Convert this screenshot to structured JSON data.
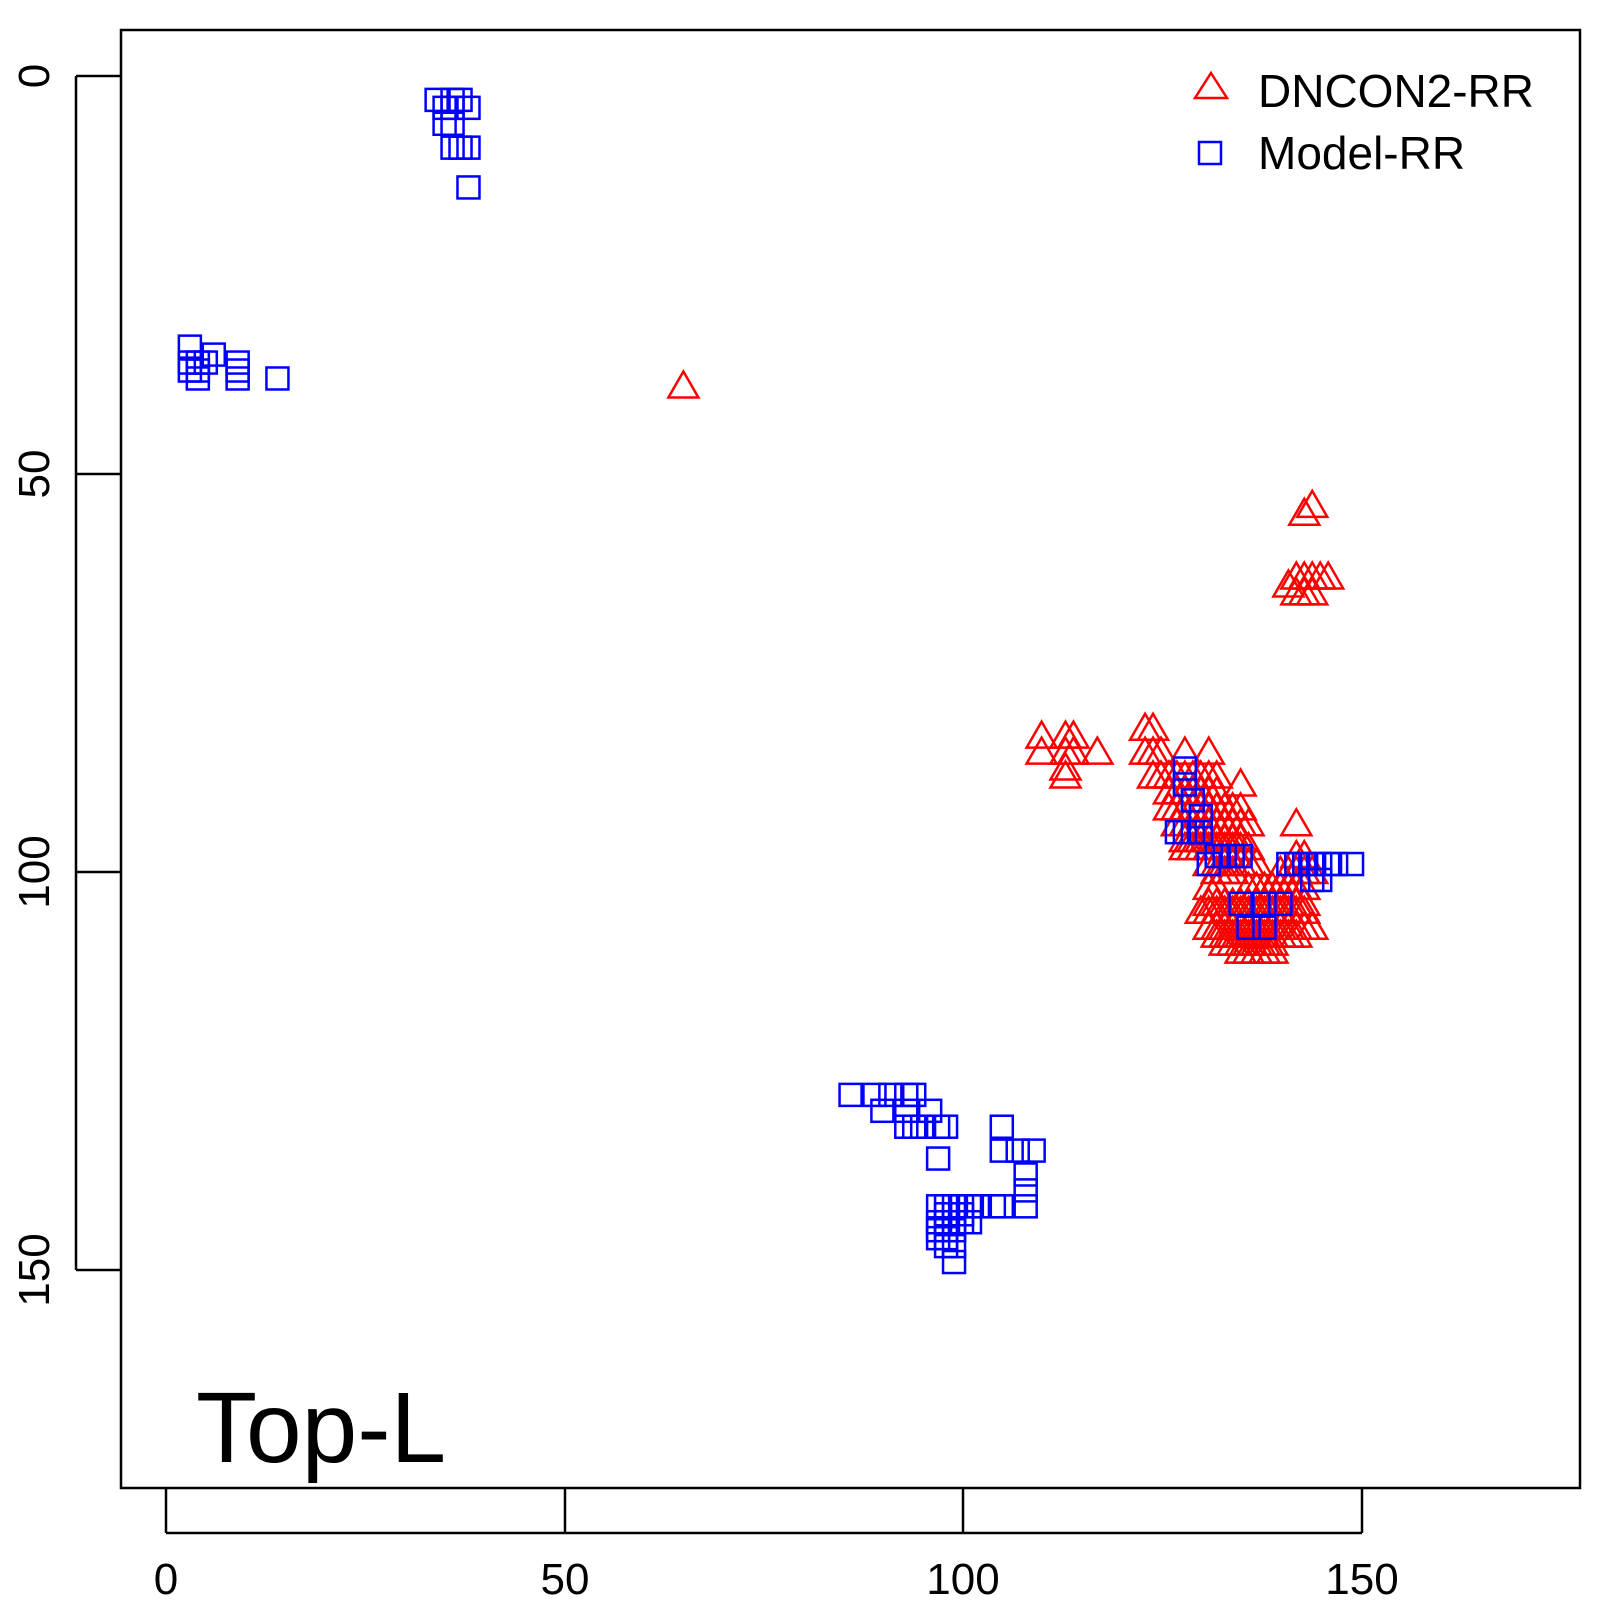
{
  "chart_data": {
    "type": "scatter",
    "title": "",
    "xlabel": "",
    "ylabel": "",
    "panel_label": "Top-L",
    "xlim": [
      -11.5,
      172
    ],
    "ylim": [
      -6,
      177
    ],
    "y_axis_inverted": true,
    "x_ticks": [
      "0",
      "50",
      "100",
      "150"
    ],
    "y_ticks": [
      "0",
      "50",
      "100",
      "150"
    ],
    "grid": false,
    "legend_position": "top-right",
    "colors": {
      "dncon2": "#ff0000",
      "model": "#0000ff",
      "axis": "#000000"
    },
    "series": [
      {
        "name": "DNCON2-RR",
        "marker": "triangle-open",
        "color": "#ff0000",
        "points": [
          [
            65,
            39
          ],
          [
            144,
            54
          ],
          [
            143,
            55
          ],
          [
            141,
            64
          ],
          [
            142,
            63
          ],
          [
            143,
            63
          ],
          [
            144,
            63
          ],
          [
            145,
            63
          ],
          [
            146,
            63
          ],
          [
            142,
            65
          ],
          [
            143,
            65
          ],
          [
            144,
            65
          ],
          [
            110,
            83
          ],
          [
            113,
            83
          ],
          [
            114,
            83
          ],
          [
            110,
            85
          ],
          [
            113,
            85
          ],
          [
            114,
            85
          ],
          [
            117,
            85
          ],
          [
            113,
            87
          ],
          [
            113,
            88
          ],
          [
            123,
            82
          ],
          [
            124,
            82
          ],
          [
            123,
            85
          ],
          [
            124,
            85
          ],
          [
            125,
            85
          ],
          [
            128,
            85
          ],
          [
            131,
            85
          ],
          [
            124,
            88
          ],
          [
            125,
            88
          ],
          [
            126,
            88
          ],
          [
            127,
            88
          ],
          [
            128,
            88
          ],
          [
            129,
            88
          ],
          [
            130,
            88
          ],
          [
            131,
            88
          ],
          [
            132,
            88
          ],
          [
            126,
            90
          ],
          [
            127,
            90
          ],
          [
            128,
            90
          ],
          [
            129,
            90
          ],
          [
            130,
            90
          ],
          [
            131,
            90
          ],
          [
            132,
            90
          ],
          [
            135,
            89
          ],
          [
            126,
            92
          ],
          [
            127,
            92
          ],
          [
            128,
            92
          ],
          [
            129,
            92
          ],
          [
            130,
            92
          ],
          [
            131,
            92
          ],
          [
            132,
            92
          ],
          [
            133,
            92
          ],
          [
            134,
            92
          ],
          [
            135,
            92
          ],
          [
            127,
            94
          ],
          [
            128,
            94
          ],
          [
            129,
            94
          ],
          [
            130,
            94
          ],
          [
            131,
            94
          ],
          [
            132,
            94
          ],
          [
            133,
            94
          ],
          [
            134,
            94
          ],
          [
            135,
            94
          ],
          [
            136,
            94
          ],
          [
            142,
            94
          ],
          [
            128,
            96
          ],
          [
            129,
            96
          ],
          [
            130,
            96
          ],
          [
            131,
            96
          ],
          [
            132,
            96
          ],
          [
            133,
            96
          ],
          [
            134,
            96
          ],
          [
            135,
            96
          ],
          [
            128,
            97
          ],
          [
            129,
            97
          ],
          [
            130,
            97
          ],
          [
            131,
            97
          ],
          [
            132,
            97
          ],
          [
            133,
            97
          ],
          [
            134,
            97
          ],
          [
            135,
            97
          ],
          [
            136,
            97
          ],
          [
            131,
            99
          ],
          [
            132,
            99
          ],
          [
            133,
            99
          ],
          [
            134,
            99
          ],
          [
            135,
            99
          ],
          [
            136,
            99
          ],
          [
            137,
            99
          ],
          [
            142,
            98
          ],
          [
            143,
            98
          ],
          [
            132,
            100
          ],
          [
            133,
            100
          ],
          [
            134,
            100
          ],
          [
            140,
            100
          ],
          [
            141,
            100
          ],
          [
            142,
            100
          ],
          [
            143,
            100
          ],
          [
            144,
            100
          ],
          [
            131,
            102
          ],
          [
            132,
            102
          ],
          [
            136,
            102
          ],
          [
            137,
            102
          ],
          [
            138,
            102
          ],
          [
            139,
            102
          ],
          [
            140,
            102
          ],
          [
            141,
            102
          ],
          [
            142,
            102
          ],
          [
            143,
            102
          ],
          [
            131,
            104
          ],
          [
            132,
            104
          ],
          [
            133,
            104
          ],
          [
            134,
            104
          ],
          [
            135,
            104
          ],
          [
            136,
            104
          ],
          [
            137,
            104
          ],
          [
            138,
            104
          ],
          [
            139,
            104
          ],
          [
            140,
            104
          ],
          [
            141,
            104
          ],
          [
            142,
            104
          ],
          [
            143,
            104
          ],
          [
            130,
            105
          ],
          [
            131,
            105
          ],
          [
            132,
            105
          ],
          [
            133,
            105
          ],
          [
            134,
            105
          ],
          [
            135,
            105
          ],
          [
            136,
            105
          ],
          [
            137,
            105
          ],
          [
            138,
            105
          ],
          [
            139,
            105
          ],
          [
            140,
            105
          ],
          [
            141,
            105
          ],
          [
            142,
            105
          ],
          [
            143,
            105
          ],
          [
            131,
            107
          ],
          [
            132,
            107
          ],
          [
            133,
            107
          ],
          [
            134,
            107
          ],
          [
            135,
            107
          ],
          [
            136,
            107
          ],
          [
            137,
            107
          ],
          [
            138,
            107
          ],
          [
            139,
            107
          ],
          [
            140,
            107
          ],
          [
            141,
            107
          ],
          [
            142,
            107
          ],
          [
            143,
            107
          ],
          [
            144,
            107
          ],
          [
            132,
            108
          ],
          [
            133,
            108
          ],
          [
            134,
            108
          ],
          [
            135,
            108
          ],
          [
            136,
            108
          ],
          [
            137,
            108
          ],
          [
            138,
            108
          ],
          [
            139,
            108
          ],
          [
            140,
            108
          ],
          [
            141,
            108
          ],
          [
            142,
            108
          ],
          [
            133,
            109
          ],
          [
            134,
            109
          ],
          [
            135,
            109
          ],
          [
            136,
            109
          ],
          [
            137,
            109
          ],
          [
            138,
            109
          ],
          [
            139,
            109
          ],
          [
            135,
            110
          ],
          [
            136,
            110
          ],
          [
            137,
            110
          ],
          [
            138,
            110
          ],
          [
            139,
            110
          ]
        ]
      },
      {
        "name": "Model-RR",
        "marker": "square-open",
        "color": "#0000ff",
        "points": [
          [
            34,
            3
          ],
          [
            36,
            3
          ],
          [
            37,
            3
          ],
          [
            35,
            4
          ],
          [
            36,
            4
          ],
          [
            38,
            4
          ],
          [
            35,
            6
          ],
          [
            36,
            6
          ],
          [
            36,
            9
          ],
          [
            37,
            9
          ],
          [
            38,
            9
          ],
          [
            38,
            14
          ],
          [
            3,
            34
          ],
          [
            3,
            36
          ],
          [
            4,
            36
          ],
          [
            5,
            36
          ],
          [
            6,
            35
          ],
          [
            9,
            36
          ],
          [
            3,
            37
          ],
          [
            4,
            37
          ],
          [
            9,
            37
          ],
          [
            4,
            38
          ],
          [
            9,
            38
          ],
          [
            14,
            38
          ],
          [
            128,
            87
          ],
          [
            128,
            89
          ],
          [
            129,
            91
          ],
          [
            130,
            93
          ],
          [
            127,
            95
          ],
          [
            128,
            95
          ],
          [
            129,
            95
          ],
          [
            130,
            95
          ],
          [
            132,
            98
          ],
          [
            133,
            98
          ],
          [
            134,
            98
          ],
          [
            135,
            98
          ],
          [
            131,
            99
          ],
          [
            141,
            99
          ],
          [
            142,
            99
          ],
          [
            143,
            99
          ],
          [
            144,
            99
          ],
          [
            145,
            99
          ],
          [
            146,
            99
          ],
          [
            147,
            99
          ],
          [
            149,
            99
          ],
          [
            144,
            101
          ],
          [
            145,
            101
          ],
          [
            135,
            104
          ],
          [
            138,
            104
          ],
          [
            140,
            104
          ],
          [
            136,
            107
          ],
          [
            138,
            107
          ],
          [
            86,
            128
          ],
          [
            89,
            128
          ],
          [
            91,
            128
          ],
          [
            93,
            128
          ],
          [
            94,
            128
          ],
          [
            90,
            130
          ],
          [
            93,
            130
          ],
          [
            96,
            130
          ],
          [
            93,
            132
          ],
          [
            94,
            132
          ],
          [
            95,
            132
          ],
          [
            97,
            132
          ],
          [
            98,
            132
          ],
          [
            105,
            132
          ],
          [
            97,
            136
          ],
          [
            105,
            135
          ],
          [
            107,
            135
          ],
          [
            109,
            135
          ],
          [
            108,
            138
          ],
          [
            108,
            140
          ],
          [
            97,
            142
          ],
          [
            98,
            142
          ],
          [
            99,
            142
          ],
          [
            100,
            142
          ],
          [
            101,
            142
          ],
          [
            102,
            142
          ],
          [
            104,
            142
          ],
          [
            105,
            142
          ],
          [
            108,
            142
          ],
          [
            98,
            143
          ],
          [
            99,
            143
          ],
          [
            100,
            143
          ],
          [
            97,
            144
          ],
          [
            98,
            144
          ],
          [
            99,
            144
          ],
          [
            100,
            144
          ],
          [
            101,
            144
          ],
          [
            97,
            145
          ],
          [
            98,
            145
          ],
          [
            99,
            145
          ],
          [
            97,
            146
          ],
          [
            98,
            146
          ],
          [
            98,
            147
          ],
          [
            99,
            147
          ],
          [
            99,
            149
          ]
        ]
      }
    ]
  }
}
